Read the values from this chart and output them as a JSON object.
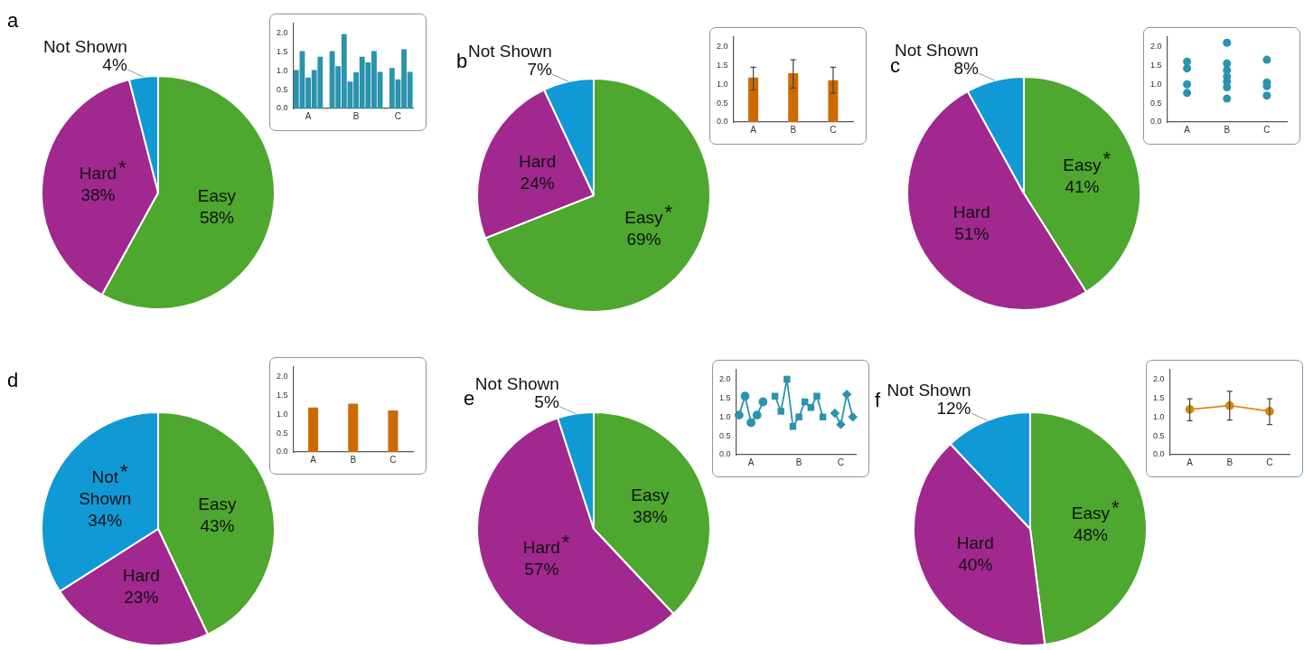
{
  "chart_data": [
    {
      "type": "pie",
      "title": "a",
      "categories": [
        "Easy",
        "Hard",
        "Not Shown"
      ],
      "values": [
        58,
        38,
        4
      ],
      "colors": [
        "#4ea72e",
        "#a0288f",
        "#1199d6"
      ],
      "value_labels": [
        "58%",
        "38%",
        "4%"
      ],
      "annotations": [
        {
          "text": "*",
          "x": "Hard"
        }
      ]
    },
    {
      "type": "bar",
      "categories": [
        null,
        null,
        "A",
        null,
        null,
        null,
        null,
        null,
        null,
        null,
        "B",
        null,
        null,
        null,
        null,
        null,
        null,
        "C",
        null,
        null
      ],
      "values": [
        1.02,
        1.52,
        0.82,
        1.02,
        1.37,
        null,
        1.52,
        1.12,
        1.97,
        0.71,
        0.96,
        1.37,
        1.22,
        1.52,
        0.97,
        null,
        1.07,
        0.77,
        1.57,
        0.97
      ],
      "color": "#2a93ad",
      "ylim": [
        0,
        2.25
      ],
      "yticks": [
        {
          "value": 0,
          "label": "0.0"
        },
        {
          "value": 0.5,
          "label": "0.5"
        },
        {
          "value": 1,
          "label": "1.0"
        },
        {
          "value": 1.5,
          "label": "1.5"
        },
        {
          "value": 2,
          "label": "2.0"
        }
      ]
    },
    {
      "type": "pie",
      "title": "b",
      "categories": [
        "Easy",
        "Hard",
        "Not Shown"
      ],
      "values": [
        69,
        24,
        7
      ],
      "colors": [
        "#4ea72e",
        "#a0288f",
        "#1199d6"
      ],
      "value_labels": [
        "69%",
        "24%",
        "7%"
      ],
      "annotations": [
        {
          "text": "*",
          "x": "Easy"
        }
      ]
    },
    {
      "type": "bar",
      "categories": [
        "A",
        "B",
        "C"
      ],
      "values": [
        1.18,
        1.29,
        1.11
      ],
      "errors": [
        [
          0.85,
          1.45
        ],
        [
          0.9,
          1.65
        ],
        [
          0.77,
          1.45
        ]
      ],
      "color": "#cc6a00",
      "ylim": [
        0,
        2.25
      ],
      "yticks": [
        {
          "value": 0,
          "label": "0.0"
        },
        {
          "value": 0.5,
          "label": "0.5"
        },
        {
          "value": 1,
          "label": "1.0"
        },
        {
          "value": 1.5,
          "label": "1.5"
        },
        {
          "value": 2,
          "label": "2.0"
        }
      ]
    },
    {
      "type": "pie",
      "title": "c",
      "categories": [
        "Easy",
        "Hard",
        "Not Shown"
      ],
      "values": [
        41,
        51,
        8
      ],
      "colors": [
        "#4ea72e",
        "#a0288f",
        "#1199d6"
      ],
      "value_labels": [
        "41%",
        "51%",
        "8%"
      ],
      "annotations": [
        {
          "text": "*",
          "x": "Easy"
        }
      ]
    },
    {
      "type": "scatter",
      "categories": [
        "A",
        "B",
        "C"
      ],
      "marker": "circle",
      "series": [
        {
          "color": "#2a93ad",
          "x": [
            "A",
            "A",
            "A",
            "A",
            "B",
            "B",
            "B",
            "B",
            "B",
            "B",
            "B",
            "C",
            "C",
            "C",
            "C"
          ],
          "values": [
            1.6,
            1.42,
            1.0,
            0.77,
            2.1,
            1.55,
            1.37,
            1.2,
            1.07,
            0.92,
            0.62,
            1.65,
            1.05,
            0.95,
            0.7
          ]
        }
      ],
      "ylim": [
        0,
        2.25
      ],
      "yticks": [
        {
          "value": 0,
          "label": "0.0"
        },
        {
          "value": 0.5,
          "label": "0.5"
        },
        {
          "value": 1,
          "label": "1.0"
        },
        {
          "value": 1.5,
          "label": "1.5"
        },
        {
          "value": 2,
          "label": "2.0"
        }
      ]
    },
    {
      "type": "pie",
      "title": "d",
      "categories": [
        "Easy",
        "Hard",
        "Not Shown"
      ],
      "values": [
        43,
        23,
        34
      ],
      "colors": [
        "#4ea72e",
        "#a0288f",
        "#1199d6"
      ],
      "value_labels": [
        "43%",
        "23%",
        "34%"
      ],
      "annotations": [
        {
          "text": "*",
          "x": "Not Shown"
        }
      ]
    },
    {
      "type": "bar",
      "categories": [
        "A",
        "B",
        "C"
      ],
      "values": [
        1.18,
        1.28,
        1.1
      ],
      "color": "#cc6a00",
      "ylim": [
        0,
        2.25
      ],
      "yticks": [
        {
          "value": 0,
          "label": "0.0"
        },
        {
          "value": 0.5,
          "label": "0.5"
        },
        {
          "value": 1,
          "label": "1.0"
        },
        {
          "value": 1.5,
          "label": "1.5"
        },
        {
          "value": 2,
          "label": "2.0"
        }
      ]
    },
    {
      "type": "pie",
      "title": "e",
      "categories": [
        "Easy",
        "Hard",
        "Not Shown"
      ],
      "values": [
        38,
        57,
        5
      ],
      "colors": [
        "#4ea72e",
        "#a0288f",
        "#1199d6"
      ],
      "value_labels": [
        "38%",
        "57%",
        "5%"
      ],
      "annotations": [
        {
          "text": "*",
          "x": "Hard"
        }
      ]
    },
    {
      "type": "line",
      "categories": [
        null,
        null,
        "A",
        null,
        null,
        null,
        null,
        null,
        null,
        null,
        "B",
        null,
        null,
        null,
        null,
        null,
        null,
        "C",
        null,
        null
      ],
      "series": [
        {
          "color": "#2a93ad",
          "marker": "circle",
          "values": [
            1.05,
            1.55,
            0.85,
            1.05,
            1.4,
            null,
            null,
            null,
            null,
            null,
            null,
            null,
            null,
            null,
            null,
            null,
            null,
            null,
            null,
            null
          ]
        },
        {
          "color": "#2a93ad",
          "marker": "square",
          "values": [
            null,
            null,
            null,
            null,
            null,
            null,
            1.55,
            1.15,
            2.0,
            0.75,
            1.0,
            1.4,
            1.25,
            1.55,
            1.0,
            null,
            null,
            null,
            null,
            null
          ]
        },
        {
          "color": "#2a93ad",
          "marker": "diamond",
          "values": [
            null,
            null,
            null,
            null,
            null,
            null,
            null,
            null,
            null,
            null,
            null,
            null,
            null,
            null,
            null,
            null,
            1.1,
            0.8,
            1.6,
            1.0
          ]
        }
      ],
      "ylim": [
        0,
        2.25
      ],
      "yticks": [
        {
          "value": 0,
          "label": "0.0"
        },
        {
          "value": 0.5,
          "label": "0.5"
        },
        {
          "value": 1,
          "label": "1.0"
        },
        {
          "value": 1.5,
          "label": "1.5"
        },
        {
          "value": 2,
          "label": "2.0"
        }
      ]
    },
    {
      "type": "pie",
      "title": "f",
      "categories": [
        "Easy",
        "Hard",
        "Not Shown"
      ],
      "values": [
        48,
        40,
        12
      ],
      "colors": [
        "#4ea72e",
        "#a0288f",
        "#1199d6"
      ],
      "value_labels": [
        "48%",
        "40%",
        "12%"
      ],
      "annotations": [
        {
          "text": "*",
          "x": "Easy"
        }
      ]
    },
    {
      "type": "line",
      "categories": [
        "A",
        "B",
        "C"
      ],
      "values": [
        1.2,
        1.3,
        1.15
      ],
      "errors": [
        [
          0.9,
          1.48
        ],
        [
          0.92,
          1.68
        ],
        [
          0.8,
          1.48
        ]
      ],
      "color": "#d98a0b",
      "marker": "circle",
      "ylim": [
        0,
        2.25
      ],
      "yticks": [
        {
          "value": 0,
          "label": "0.0"
        },
        {
          "value": 0.5,
          "label": "0.5"
        },
        {
          "value": 1,
          "label": "1.0"
        },
        {
          "value": 1.5,
          "label": "1.5"
        },
        {
          "value": 2,
          "label": "2.0"
        }
      ]
    }
  ]
}
